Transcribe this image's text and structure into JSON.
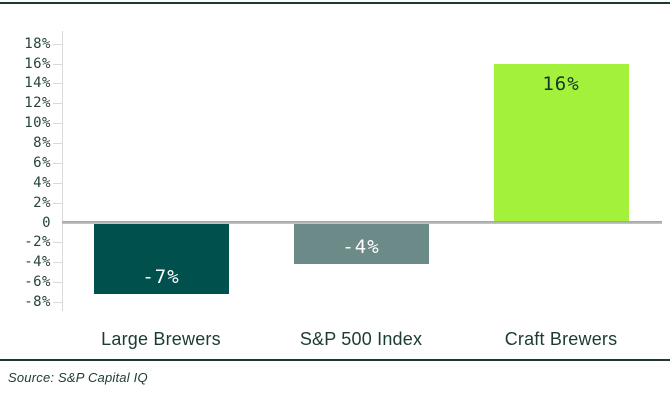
{
  "chart_data": {
    "type": "bar",
    "title": "",
    "categories": [
      "Large Brewers",
      "S&P 500 Index",
      "Craft Brewers"
    ],
    "values": [
      -7,
      -4,
      16
    ],
    "data_labels": [
      "-7%",
      "-4%",
      "16%"
    ],
    "bar_colors": [
      "#00504e",
      "#6c8a87",
      "#a4f13b"
    ],
    "data_label_colors": [
      "#ffffff",
      "#ffffff",
      "#17332e"
    ],
    "y_ticks": [
      {
        "label": "18%",
        "value": 18
      },
      {
        "label": "16%",
        "value": 16
      },
      {
        "label": "14%",
        "value": 14
      },
      {
        "label": "12%",
        "value": 12
      },
      {
        "label": "10%",
        "value": 10
      },
      {
        "label": "8%",
        "value": 8
      },
      {
        "label": "6%",
        "value": 6
      },
      {
        "label": "4%",
        "value": 4
      },
      {
        "label": "2%",
        "value": 2
      },
      {
        "label": "0",
        "value": 0
      },
      {
        "label": "-2%",
        "value": -2
      },
      {
        "label": "-4%",
        "value": -4
      },
      {
        "label": "-6%",
        "value": -6
      },
      {
        "label": "-8%",
        "value": -8
      }
    ],
    "ylim": [
      -8,
      18
    ],
    "xlabel": "",
    "ylabel": "",
    "legend": "none",
    "grid": "zero-baseline-only",
    "zero_line_color": "#a9a9a9",
    "axis_line_color": "#d9d9d9"
  },
  "footer": {
    "source_label": "Source: S&P Capital IQ"
  },
  "colors": {
    "frame_rule": "#1b3a34",
    "text": "#1c3b33",
    "background": "#ffffff"
  }
}
